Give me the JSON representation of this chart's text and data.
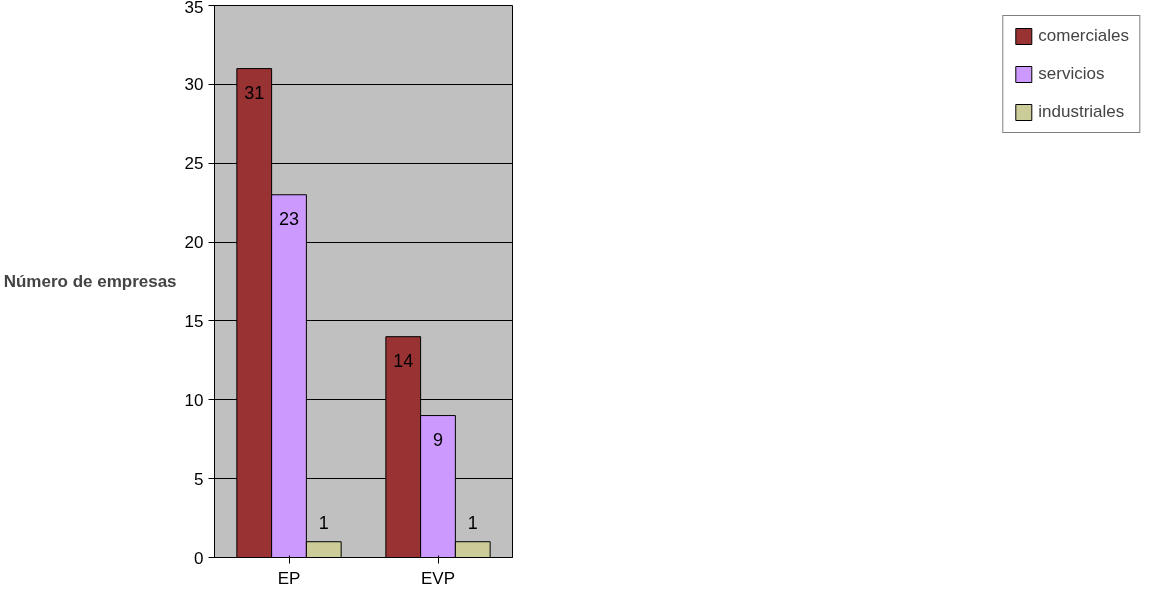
{
  "chart_data": {
    "type": "bar",
    "ylabel": "Número de empresas",
    "categories": [
      "EP",
      "EVP"
    ],
    "series": [
      {
        "name": "comerciales",
        "color": "#993333",
        "values": [
          31,
          14
        ]
      },
      {
        "name": "servicios",
        "color": "#cc99ff",
        "values": [
          23,
          9
        ]
      },
      {
        "name": "industriales",
        "color": "#cccc99",
        "values": [
          1,
          1
        ]
      }
    ],
    "ylim": [
      0,
      35
    ],
    "yticks": [
      0,
      5,
      10,
      15,
      20,
      25,
      30,
      35
    ],
    "grid": "y",
    "legend": "right",
    "data_labels": true
  }
}
